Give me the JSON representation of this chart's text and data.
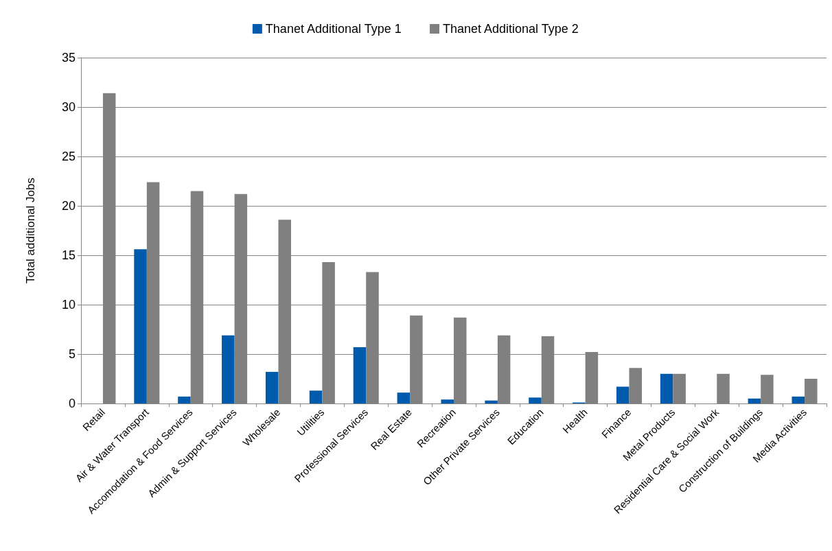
{
  "chart_data": {
    "type": "bar",
    "ylabel": "Total additional Jobs",
    "categories": [
      "Retail",
      "Air & Water Transport",
      "Accomodation & Food Services",
      "Admin & Support Services",
      "Wholesale",
      "Utilities",
      "Professional Services",
      "Real Estate",
      "Recreation",
      "Other Private Services",
      "Education",
      "Health",
      "Finance",
      "Metal Products",
      "Residential Care & Social Work",
      "Construction of Buildings",
      "Media Activities"
    ],
    "series": [
      {
        "name": "Thanet Additional Type 1",
        "color": "#005bac",
        "values": [
          0,
          15.6,
          0.7,
          6.9,
          3.2,
          1.3,
          5.7,
          1.1,
          0.4,
          0.3,
          0.6,
          0.1,
          1.7,
          3.0,
          0,
          0.5,
          0.7
        ]
      },
      {
        "name": "Thanet Additional Type 2",
        "color": "#808080",
        "values": [
          31.4,
          22.4,
          21.5,
          21.2,
          18.6,
          14.3,
          13.3,
          8.9,
          8.7,
          6.9,
          6.8,
          5.2,
          3.6,
          3.0,
          3.0,
          2.9,
          2.5
        ]
      }
    ],
    "ylim": [
      0,
      35
    ],
    "yticks": [
      0,
      5,
      10,
      15,
      20,
      25,
      30,
      35
    ],
    "grid": "y",
    "legend": "top"
  }
}
